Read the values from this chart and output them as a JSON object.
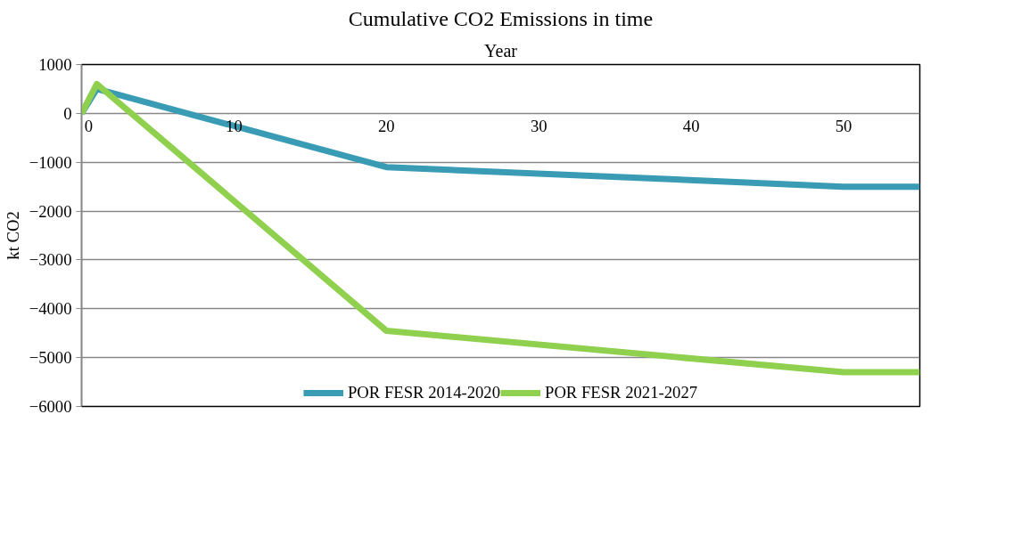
{
  "chart_data": {
    "type": "line",
    "title": "Cumulative CO2 Emissions in time",
    "xlabel": "Year",
    "ylabel": "kt CO2",
    "series": [
      {
        "name": "POR FESR 2014-2020",
        "color": "#3a9bb5",
        "x": [
          0,
          1,
          20,
          50,
          55
        ],
        "values": [
          0,
          500,
          -1100,
          -1500,
          -1500
        ]
      },
      {
        "name": "POR FESR 2021-2027",
        "color": "#8fd14f",
        "x": [
          0,
          1,
          20,
          50,
          55
        ],
        "values": [
          0,
          600,
          -4450,
          -5300,
          -5300
        ]
      }
    ],
    "xlim": [
      0,
      55
    ],
    "xticks": [
      0,
      10,
      20,
      30,
      40,
      50
    ],
    "ylim": [
      -6000,
      1000
    ],
    "yticks": [
      -6000,
      -5000,
      -4000,
      -3000,
      -2000,
      -1000,
      0,
      1000
    ],
    "grid": "y",
    "legend": "bottom",
    "line_style": "solid"
  }
}
